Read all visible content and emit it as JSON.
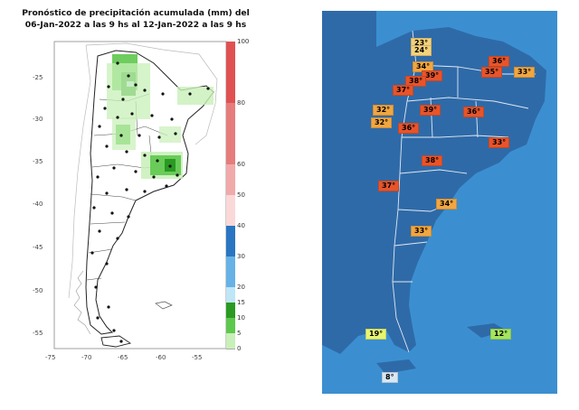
{
  "left_map": {
    "title_line1": "Pronóstico de precipitación acumulada (mm) del",
    "title_line2": "06-Jan-2022 a las 9 hs al 12-Jan-2022 a las 9 hs",
    "y_ticks": [
      "-25",
      "-30",
      "-35",
      "-40",
      "-45",
      "-50",
      "-55"
    ],
    "x_ticks": [
      "-75",
      "-70",
      "-65",
      "-60",
      "-55"
    ],
    "colorbar": {
      "labels": [
        "100",
        "80",
        "60",
        "50",
        "40",
        "30",
        "20",
        "15",
        "10",
        "5",
        "0"
      ],
      "colors": {
        "100": "#e05252",
        "80": "#e77c7c",
        "60": "#f1a9a9",
        "50": "#fbd8d8",
        "40": "#2a75c3",
        "30": "#66b2e6",
        "20": "#bfe6f7",
        "15": "#2a9a22",
        "10": "#5ec84d",
        "5": "#c8f0b8",
        "0": "#ffffff"
      }
    }
  },
  "right_map": {
    "temperatures": [
      {
        "label": "23°",
        "color": "#f4d27a"
      },
      {
        "label": "24°",
        "color": "#f4d27a"
      },
      {
        "label": "34°",
        "color": "#f2a640"
      },
      {
        "label": "39°",
        "color": "#e8542a"
      },
      {
        "label": "38°",
        "color": "#e8542a"
      },
      {
        "label": "37°",
        "color": "#e8542a"
      },
      {
        "label": "36°",
        "color": "#e8542a"
      },
      {
        "label": "35°",
        "color": "#e8542a"
      },
      {
        "label": "33°",
        "color": "#f2a640"
      },
      {
        "label": "32°",
        "color": "#f2a640"
      },
      {
        "label": "32°",
        "color": "#f2a640"
      },
      {
        "label": "39°",
        "color": "#e8542a"
      },
      {
        "label": "36°",
        "color": "#e8542a"
      },
      {
        "label": "36°",
        "color": "#e8542a"
      },
      {
        "label": "33°",
        "color": "#e8542a"
      },
      {
        "label": "38°",
        "color": "#e8542a"
      },
      {
        "label": "37°",
        "color": "#e8542a"
      },
      {
        "label": "34°",
        "color": "#f2a640"
      },
      {
        "label": "33°",
        "color": "#f2a640"
      },
      {
        "label": "19°",
        "color": "#e8f570"
      },
      {
        "label": "12°",
        "color": "#a6e55a"
      },
      {
        "label": "8°",
        "color": "#d7e7f4"
      }
    ],
    "colors": {
      "ocean": "#3b8fd0",
      "land": "#2f6aa8",
      "borders": "#ffffff"
    }
  }
}
